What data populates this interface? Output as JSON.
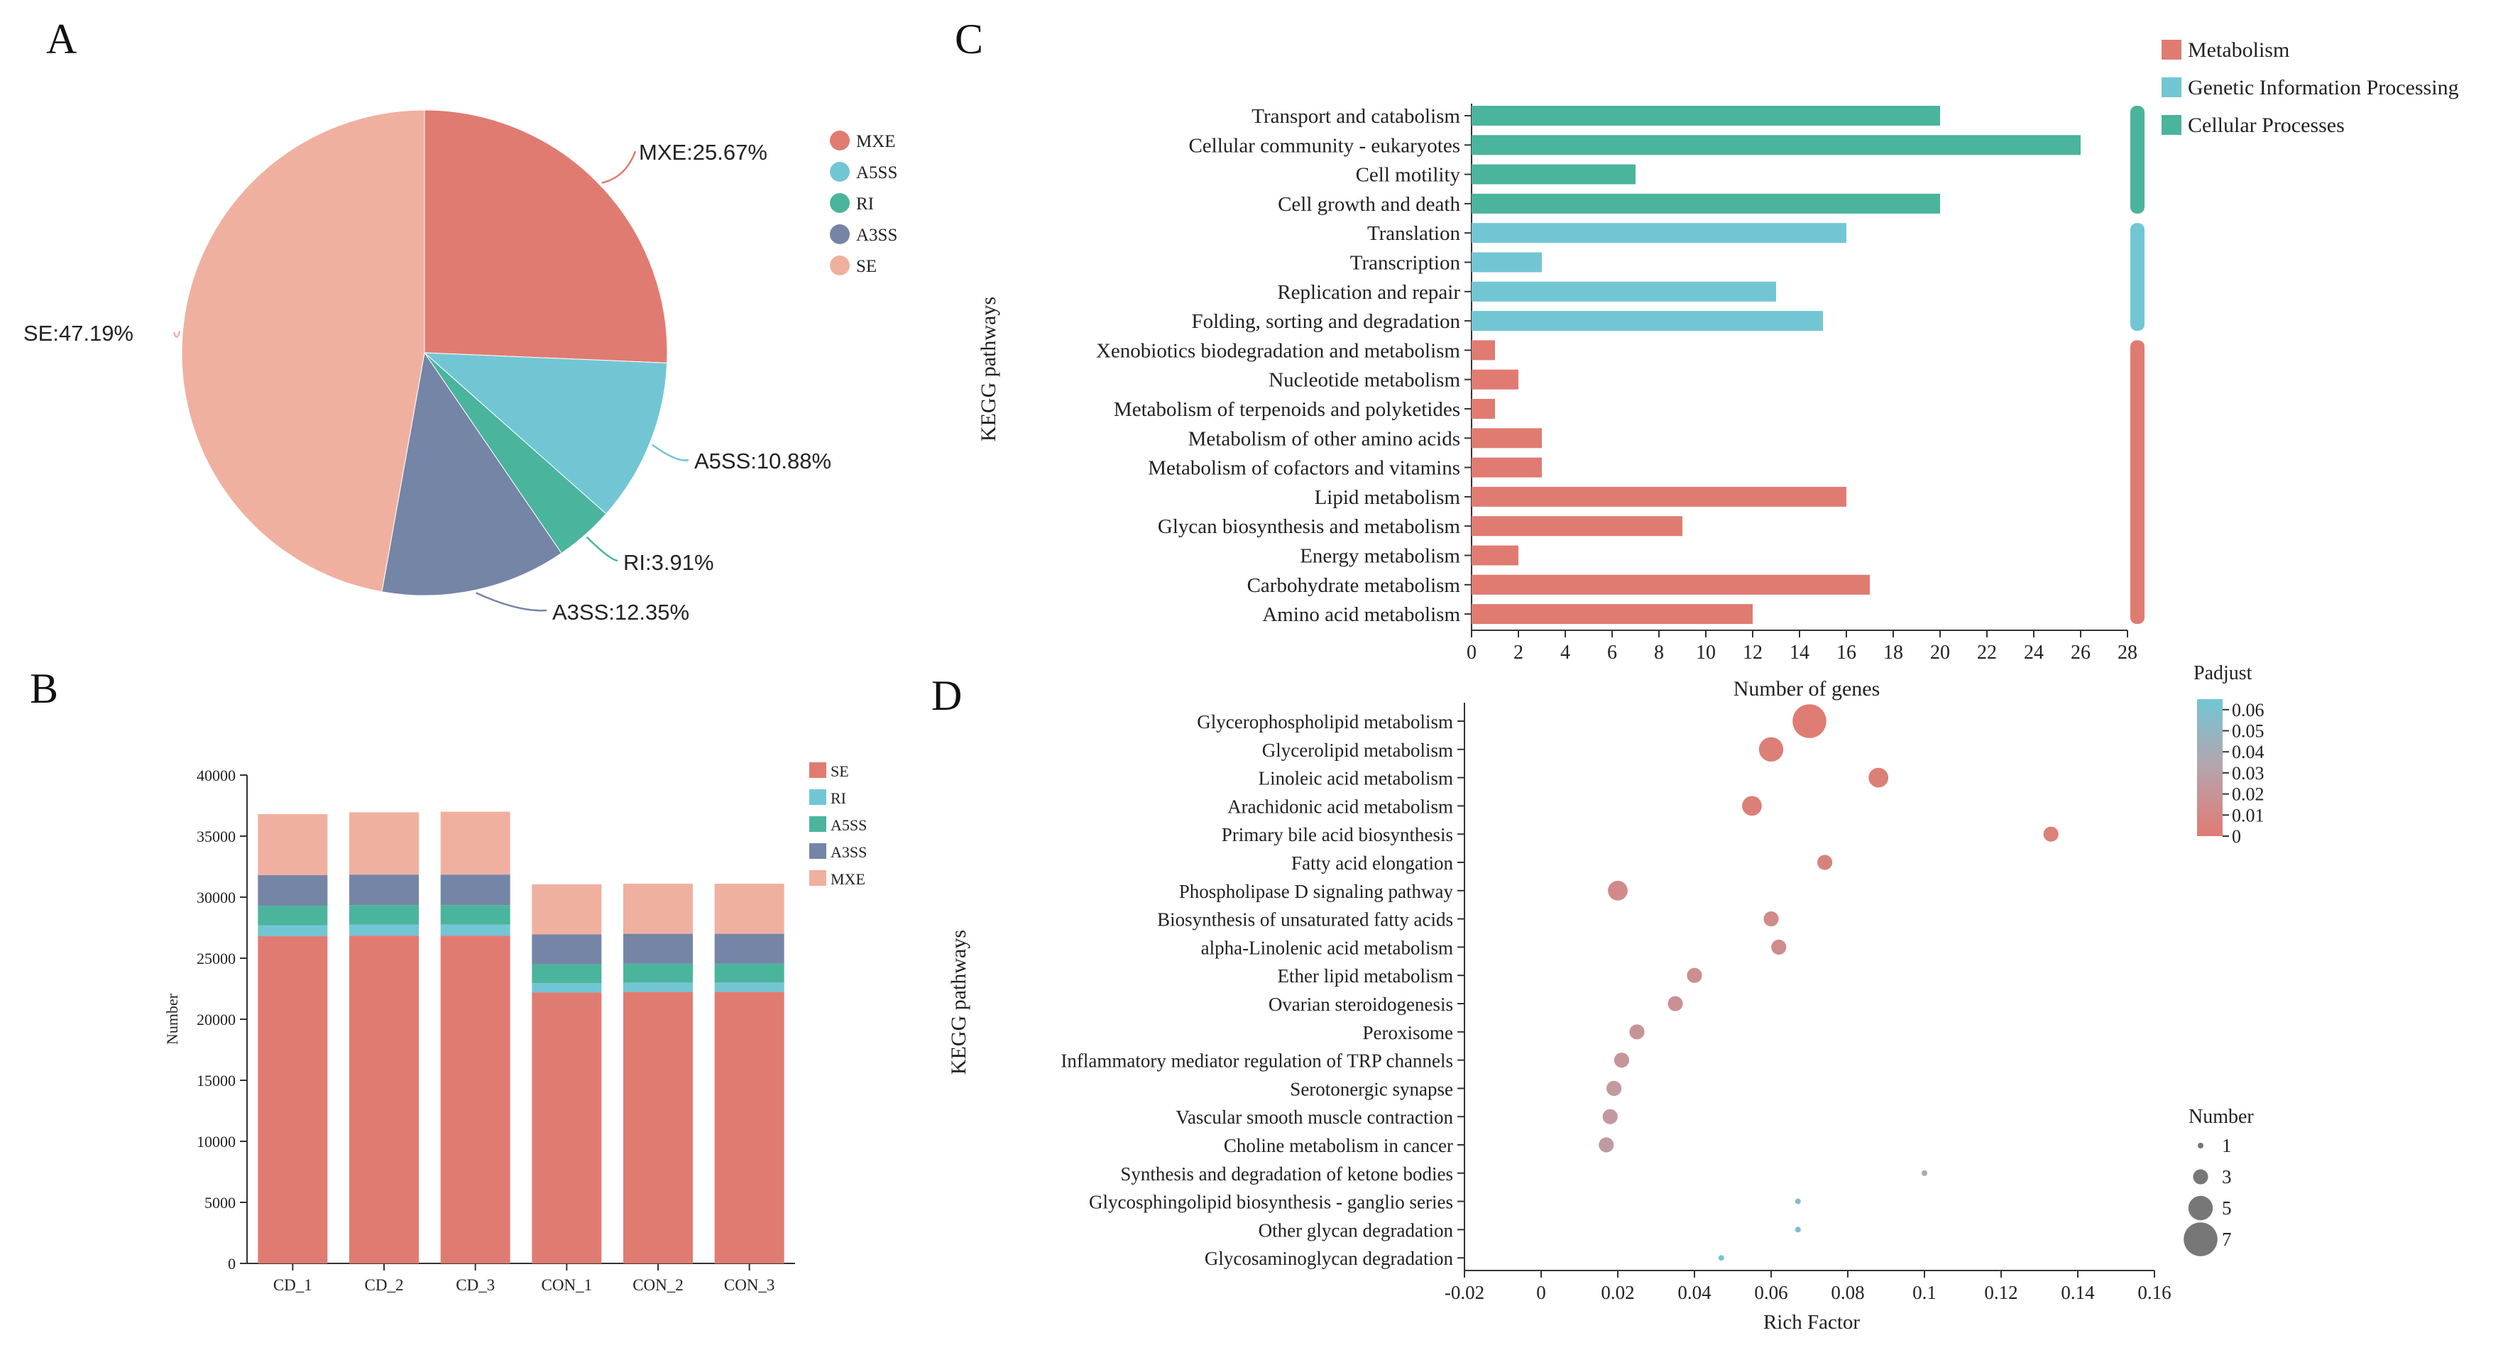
{
  "panels": {
    "a": "A",
    "b": "B",
    "c": "C",
    "d": "D"
  },
  "colors": {
    "MXE_pie": "#E07B72",
    "A5SS": "#72C6D4",
    "RI": "#4BB49C",
    "A3SS": "#7585A6",
    "SE_pie": "#F0B0A0",
    "SE_bar": "#E07B72",
    "MXE_bar": "#F0B0A0",
    "Metabolism": "#E07B72",
    "Genetic": "#72C6D4",
    "Cellular": "#4BB49C",
    "p_low": "#E07B72",
    "p_mid": "#B7A3AD",
    "p_high": "#72C6D4"
  },
  "chart_data": [
    {
      "id": "A",
      "type": "pie",
      "slices": [
        {
          "name": "MXE",
          "value": 25.67,
          "label": "MXE:25.67%"
        },
        {
          "name": "A5SS",
          "value": 10.88,
          "label": "A5SS:10.88%"
        },
        {
          "name": "RI",
          "value": 3.91,
          "label": "RI:3.91%"
        },
        {
          "name": "A3SS",
          "value": 12.35,
          "label": "A3SS:12.35%"
        },
        {
          "name": "SE",
          "value": 47.19,
          "label": "SE:47.19%"
        }
      ],
      "legend": [
        "MXE",
        "A5SS",
        "RI",
        "A3SS",
        "SE"
      ]
    },
    {
      "id": "B",
      "type": "bar",
      "stacked": true,
      "categories": [
        "CD_1",
        "CD_2",
        "CD_3",
        "CON_1",
        "CON_2",
        "CON_3"
      ],
      "series": [
        {
          "name": "SE",
          "values": [
            26800,
            26850,
            26850,
            22200,
            22250,
            22250
          ]
        },
        {
          "name": "RI",
          "values": [
            900,
            900,
            900,
            750,
            750,
            750
          ]
        },
        {
          "name": "A5SS",
          "values": [
            1600,
            1600,
            1600,
            1550,
            1550,
            1550
          ]
        },
        {
          "name": "A3SS",
          "values": [
            2500,
            2500,
            2500,
            2450,
            2450,
            2450
          ]
        },
        {
          "name": "MXE",
          "values": [
            5000,
            5100,
            5150,
            4100,
            4100,
            4100
          ]
        }
      ],
      "legend": [
        "SE",
        "RI",
        "A5SS",
        "A3SS",
        "MXE"
      ],
      "ylabel": "Number",
      "ylim": [
        0,
        40000
      ],
      "yticks": [
        "0",
        "5000",
        "10000",
        "15000",
        "20000",
        "25000",
        "30000",
        "35000",
        "40000"
      ]
    },
    {
      "id": "C",
      "type": "bar",
      "orientation": "horizontal",
      "categories": [
        "Transport and catabolism",
        "Cellular community - eukaryotes",
        "Cell motility",
        "Cell growth and death",
        "Translation",
        "Transcription",
        "Replication and repair",
        "Folding, sorting and degradation",
        "Xenobiotics biodegradation and metabolism",
        "Nucleotide metabolism",
        "Metabolism of terpenoids and polyketides",
        "Metabolism of other amino acids",
        "Metabolism of cofactors and vitamins",
        "Lipid metabolism",
        "Glycan biosynthesis and metabolism",
        "Energy metabolism",
        "Carbohydrate metabolism",
        "Amino acid metabolism"
      ],
      "values": [
        20,
        26,
        7,
        20,
        16,
        3,
        13,
        15,
        1,
        2,
        1,
        3,
        3,
        16,
        9,
        2,
        17,
        12
      ],
      "groups": [
        "Cellular",
        "Cellular",
        "Cellular",
        "Cellular",
        "Genetic",
        "Genetic",
        "Genetic",
        "Genetic",
        "Metabolism",
        "Metabolism",
        "Metabolism",
        "Metabolism",
        "Metabolism",
        "Metabolism",
        "Metabolism",
        "Metabolism",
        "Metabolism",
        "Metabolism"
      ],
      "legend": [
        {
          "key": "Metabolism",
          "label": "Metabolism"
        },
        {
          "key": "Genetic",
          "label": "Genetic Information Processing"
        },
        {
          "key": "Cellular",
          "label": "Cellular Processes"
        }
      ],
      "xlabel": "Number of genes",
      "ylabel": "KEGG pathways",
      "xlim": [
        0,
        28
      ],
      "xticks": [
        "0",
        "2",
        "4",
        "6",
        "8",
        "10",
        "12",
        "14",
        "16",
        "18",
        "20",
        "22",
        "24",
        "26",
        "28"
      ]
    },
    {
      "id": "D",
      "type": "scatter",
      "categories": [
        "Glycerophospholipid metabolism",
        "Glycerolipid metabolism",
        "Linoleic acid metabolism",
        "Arachidonic acid metabolism",
        "Primary bile acid biosynthesis",
        "Fatty acid elongation",
        "Phospholipase D signaling pathway",
        "Biosynthesis of unsaturated fatty acids",
        "alpha-Linolenic acid metabolism",
        "Ether lipid metabolism",
        "Ovarian steroidogenesis",
        "Peroxisome",
        "Inflammatory mediator regulation of TRP channels",
        "Serotonergic synapse",
        "Vascular smooth muscle contraction",
        "Choline metabolism in cancer",
        "Synthesis and degradation of ketone bodies",
        "Glycosphingolipid biosynthesis - ganglio series",
        "Other glycan degradation",
        "Glycosaminoglycan degradation"
      ],
      "rich_factor": [
        0.07,
        0.06,
        0.088,
        0.055,
        0.133,
        0.074,
        0.02,
        0.06,
        0.062,
        0.04,
        0.035,
        0.025,
        0.021,
        0.019,
        0.018,
        0.017,
        0.1,
        0.067,
        0.067,
        0.047
      ],
      "number": [
        7,
        5,
        4,
        4,
        3,
        3,
        4,
        3,
        3,
        3,
        3,
        3,
        3,
        3,
        3,
        3,
        1,
        1,
        1,
        1
      ],
      "padjust": [
        0.001,
        0.003,
        0.003,
        0.004,
        0.005,
        0.006,
        0.012,
        0.013,
        0.014,
        0.016,
        0.018,
        0.02,
        0.022,
        0.024,
        0.025,
        0.026,
        0.038,
        0.055,
        0.058,
        0.063
      ],
      "xlabel": "Rich Factor",
      "ylabel": "KEGG pathways",
      "xlim": [
        -0.02,
        0.16
      ],
      "xticks": [
        "-0.02",
        "0",
        "0.02",
        "0.04",
        "0.06",
        "0.08",
        "0.1",
        "0.12",
        "0.14",
        "0.16"
      ],
      "color_legend": {
        "title": "Padjust",
        "ticks": [
          "0.06",
          "0.05",
          "0.04",
          "0.03",
          "0.02",
          "0.01",
          "0"
        ],
        "range": [
          0,
          0.065
        ]
      },
      "size_legend": {
        "title": "Number",
        "items": [
          "1",
          "3",
          "5",
          "7"
        ]
      }
    }
  ]
}
